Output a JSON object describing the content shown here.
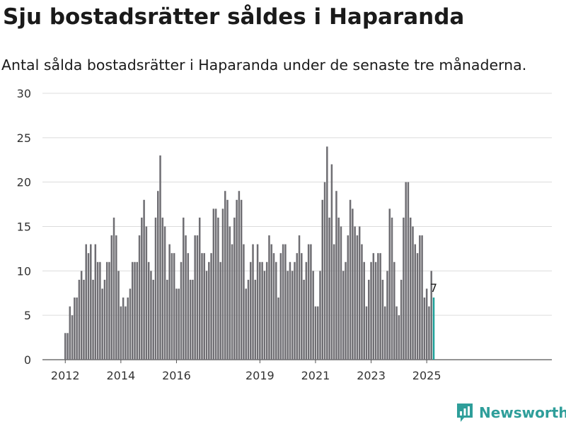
{
  "title": "Sju bostadsrätter såldes i Haparanda",
  "subtitle": "Antal sålda bostadsrätter i Haparanda under de senaste tre månaderna.",
  "brand": {
    "name": "Newsworthy",
    "color": "#2e9e9a",
    "icon": "newsworthy-logo-icon"
  },
  "colors": {
    "bar": "#6f6e73",
    "highlight": "#1b9e97",
    "grid": "#dcdcdc"
  },
  "chart_data": {
    "type": "bar",
    "start_period": "2012-01",
    "ylim": [
      0,
      30
    ],
    "yticks": [
      0,
      5,
      10,
      15,
      20,
      25,
      30
    ],
    "xticks": [
      "2012",
      "2014",
      "2016",
      "2019",
      "2021",
      "2023",
      "2025"
    ],
    "grid": true,
    "highlight_last": true,
    "last_value_label": "7",
    "values": [
      3,
      3,
      6,
      5,
      7,
      7,
      9,
      10,
      9,
      13,
      12,
      13,
      9,
      13,
      11,
      11,
      8,
      9,
      11,
      11,
      14,
      16,
      14,
      10,
      6,
      7,
      6,
      7,
      8,
      11,
      11,
      11,
      14,
      16,
      18,
      15,
      11,
      10,
      9,
      16,
      19,
      23,
      16,
      15,
      9,
      13,
      12,
      12,
      8,
      8,
      11,
      16,
      14,
      12,
      9,
      9,
      14,
      14,
      16,
      12,
      12,
      10,
      11,
      12,
      17,
      17,
      16,
      11,
      17,
      19,
      18,
      15,
      13,
      16,
      18,
      19,
      18,
      13,
      8,
      9,
      11,
      13,
      9,
      13,
      11,
      11,
      10,
      11,
      14,
      13,
      12,
      11,
      7,
      12,
      13,
      13,
      10,
      11,
      10,
      11,
      12,
      14,
      12,
      9,
      11,
      13,
      13,
      10,
      6,
      6,
      10,
      18,
      20,
      24,
      16,
      22,
      13,
      19,
      16,
      15,
      10,
      11,
      14,
      18,
      17,
      15,
      14,
      15,
      13,
      11,
      6,
      9,
      11,
      12,
      11,
      12,
      12,
      9,
      6,
      10,
      17,
      16,
      11,
      6,
      5,
      9,
      16,
      20,
      20,
      16,
      15,
      13,
      12,
      14,
      14,
      7,
      8,
      6,
      10,
      7
    ]
  }
}
